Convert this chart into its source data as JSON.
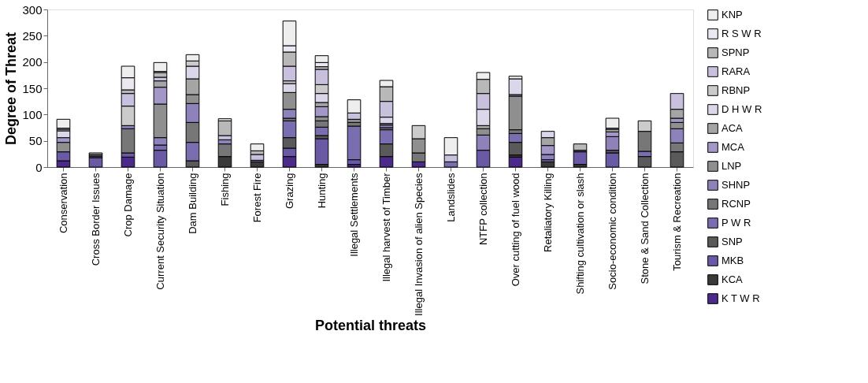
{
  "chart_data": {
    "type": "bar",
    "stacked": true,
    "xlabel": "Potential threats",
    "ylabel": "Degree of Threat",
    "legend": "right",
    "categories": [
      "Conservation",
      "Cross Border Issues",
      "Crop Damage",
      "Current Security Situation",
      "Dam Building",
      "Fishing",
      "Forest Fire",
      "Grazing",
      "Hunting",
      "Illegal Settlements",
      "Illegal harvest of Timber",
      "Illegal Invasion of alien Species",
      "Landslides",
      "NTFP collection",
      "Over cutting of fuel wood",
      "Retaliatory Killing",
      "Shifting cultivation or slash",
      "Socio-economic condition",
      "Stone & Sand Collection",
      "Tourism & Recreation"
    ],
    "ylim": [
      0,
      300
    ],
    "yticks": [
      0,
      50,
      100,
      150,
      200,
      250,
      300
    ],
    "series": [
      {
        "name": "K T W R",
        "color": "#4b2a8a",
        "values": [
          12,
          null,
          19,
          null,
          null,
          null,
          null,
          20,
          null,
          5,
          20,
          10,
          null,
          null,
          19,
          null,
          null,
          null,
          null,
          null
        ]
      },
      {
        "name": "KCA",
        "color": "#3a3a3a",
        "values": [
          null,
          null,
          null,
          null,
          null,
          20,
          10,
          null,
          5,
          null,
          null,
          null,
          null,
          null,
          4,
          10,
          5,
          null,
          null,
          null
        ]
      },
      {
        "name": "MKB",
        "color": "#6a5aa6",
        "values": [
          17,
          18,
          8,
          32,
          null,
          null,
          null,
          16,
          49,
          9,
          null,
          null,
          null,
          32,
          null,
          null,
          24,
          27,
          null,
          null
        ]
      },
      {
        "name": "SNP",
        "color": "#5a5a5a",
        "values": [
          null,
          3,
          null,
          null,
          12,
          null,
          null,
          20,
          6,
          null,
          24,
          null,
          null,
          null,
          24,
          null,
          3,
          5,
          20,
          29
        ]
      },
      {
        "name": "P W R",
        "color": "#7b6eb0",
        "values": [
          null,
          null,
          null,
          10,
          35,
          null,
          3,
          32,
          16,
          64,
          27,
          null,
          10,
          null,
          17,
          4,
          null,
          null,
          10,
          null
        ]
      },
      {
        "name": "RCNP",
        "color": "#777777",
        "values": [
          null,
          null,
          46,
          null,
          38,
          24,
          null,
          5,
          12,
          7,
          4,
          17,
          null,
          null,
          7,
          null,
          null,
          null,
          38,
          17
        ]
      },
      {
        "name": "SHNP",
        "color": "#8f82bb",
        "values": [
          null,
          null,
          6,
          14,
          36,
          8,
          null,
          17,
          null,
          null,
          5,
          null,
          null,
          29,
          null,
          10,
          null,
          26,
          null,
          27
        ]
      },
      {
        "name": "LNP",
        "color": "#8f8f8f",
        "values": [
          18,
          3,
          null,
          64,
          17,
          null,
          null,
          32,
          8,
          6,
          3,
          27,
          null,
          12,
          64,
          null,
          null,
          null,
          null,
          12
        ]
      },
      {
        "name": "MCA",
        "color": "#a397c8",
        "values": [
          9,
          null,
          null,
          32,
          null,
          null,
          null,
          null,
          19,
          null,
          null,
          null,
          null,
          null,
          3,
          17,
          null,
          9,
          null,
          8
        ]
      },
      {
        "name": "ACA",
        "color": "#a5a5a5",
        "values": [
          null,
          null,
          null,
          12,
          30,
          null,
          null,
          null,
          8,
          null,
          null,
          null,
          null,
          6,
          null,
          15,
          null,
          5,
          null,
          17
        ]
      },
      {
        "name": "D H W R",
        "color": "#dcd6ea",
        "values": [
          13,
          null,
          null,
          null,
          24,
          null,
          null,
          17,
          17,
          null,
          12,
          null,
          null,
          31,
          30,
          12,
          null,
          null,
          null,
          null
        ]
      },
      {
        "name": "RBNP",
        "color": "#cbcbcb",
        "values": [
          3,
          3,
          37,
          null,
          10,
          null,
          null,
          5,
          17,
          null,
          null,
          25,
          null,
          null,
          null,
          null,
          null,
          null,
          20,
          null
        ]
      },
      {
        "name": "RARA",
        "color": "#c9c0de",
        "values": [
          null,
          null,
          24,
          7,
          null,
          8,
          11,
          28,
          29,
          12,
          30,
          null,
          13,
          30,
          null,
          null,
          null,
          2,
          null,
          30
        ]
      },
      {
        "name": "SPNP",
        "color": "#b8b8b8",
        "values": [
          null,
          null,
          7,
          9,
          null,
          28,
          7,
          27,
          5,
          null,
          28,
          null,
          null,
          27,
          null,
          null,
          12,
          null,
          null,
          null
        ]
      },
      {
        "name": "R S W R",
        "color": "#ebe8f2",
        "values": [
          2,
          null,
          23,
          2,
          null,
          null,
          null,
          12,
          8,
          null,
          null,
          null,
          null,
          null,
          null,
          null,
          null,
          null,
          null,
          null
        ]
      },
      {
        "name": "KNP",
        "color": "#eeeeee",
        "values": [
          17,
          null,
          22,
          17,
          12,
          4,
          13,
          47,
          13,
          25,
          12,
          null,
          33,
          13,
          5,
          null,
          null,
          19,
          null,
          null
        ]
      }
    ]
  }
}
